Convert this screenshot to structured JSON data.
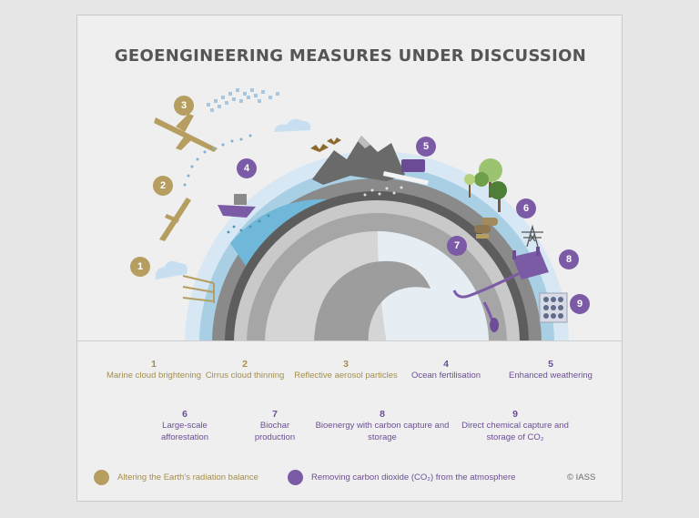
{
  "title": "GEOENGINEERING MEASURES UNDER DISCUSSION",
  "colors": {
    "radiation": "#b59e5f",
    "removal": "#7c5ba6"
  },
  "measures": [
    {
      "num": "1",
      "label": "Marine cloud brightening",
      "group": "radiation"
    },
    {
      "num": "2",
      "label": "Cirrus cloud thinning",
      "group": "radiation"
    },
    {
      "num": "3",
      "label": "Reflective aerosol particles",
      "group": "radiation"
    },
    {
      "num": "4",
      "label": "Ocean fertilisation",
      "group": "removal"
    },
    {
      "num": "5",
      "label": "Enhanced weathering",
      "group": "removal"
    },
    {
      "num": "6",
      "label": "Large-scale afforestation",
      "group": "removal"
    },
    {
      "num": "7",
      "label": "Biochar production",
      "group": "removal"
    },
    {
      "num": "8",
      "label": "Bioenergy with carbon capture and storage",
      "group": "removal"
    },
    {
      "num": "9",
      "label": "Direct chemical capture and storage of CO₂",
      "group": "removal"
    }
  ],
  "legend": {
    "radiation": "Altering the Earth's radiation balance",
    "removal": "Removing carbon dioxide (CO₂) from the atmosphere"
  },
  "copyright": "© IASS"
}
